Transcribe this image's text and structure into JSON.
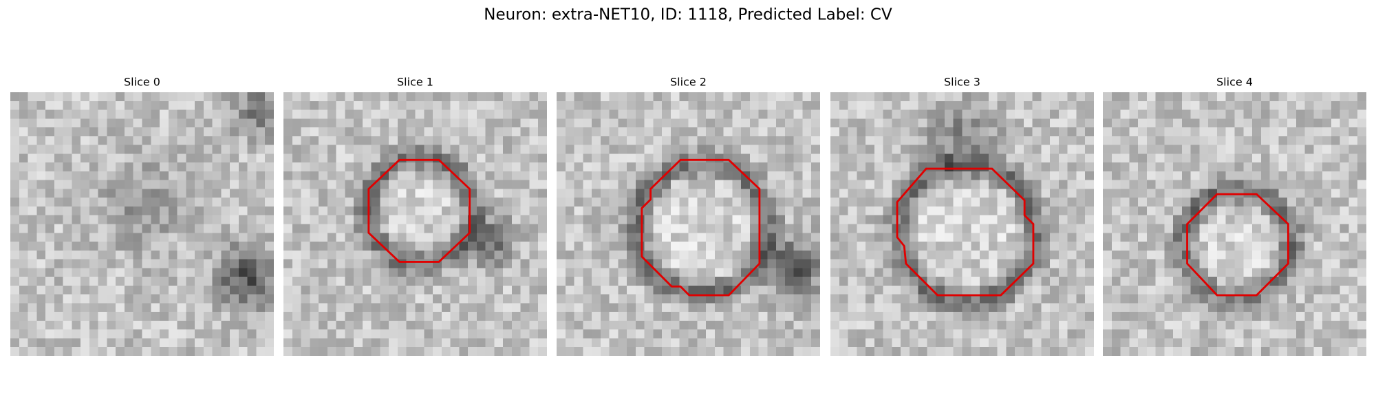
{
  "title": "Neuron: extra-NET10, ID: 1118, Predicted Label: CV",
  "panels": [
    {
      "title": "Slice 0"
    },
    {
      "title": "Slice 1"
    },
    {
      "title": "Slice 2"
    },
    {
      "title": "Slice 3"
    },
    {
      "title": "Slice 4"
    }
  ]
}
